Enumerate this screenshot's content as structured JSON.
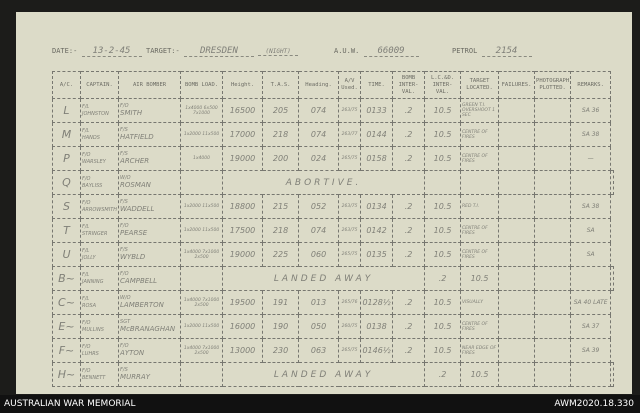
{
  "header": {
    "date_label": "DATE:-",
    "date": "13-2-45",
    "target_label": "TARGET:-",
    "target": "DRESDEN",
    "target_note": "(NIGHT)",
    "auw_label": "A.U.W.",
    "auw": "66009",
    "petrol_label": "PETROL",
    "petrol": "2154"
  },
  "columns": [
    "A/C.",
    "CAPTAIN.",
    "AIR BOMBER",
    "BOMB LOAD.",
    "Height.",
    "T.A.S.",
    "Heading.",
    "A/V Used.",
    "TIME.",
    "BOMB INTER-VAL.",
    "L.C.&D. INTER-VAL.",
    "TARGET LOCATED.",
    "FAILURES.",
    "PHOTOGRAPH PLOTTED.",
    "REMARKS."
  ],
  "rows": [
    {
      "ac": "L",
      "captain_rank": "F/L",
      "captain": "JOHNSTON",
      "bomber_rank": "F/O",
      "bomber": "SMITH",
      "load": "1x4000 6x500 7x1000",
      "height": "16500",
      "tas": "205",
      "heading": "074",
      "av": "263/75",
      "time": "0133",
      "bomb_int": ".2",
      "lcd_int": "10.5",
      "located": "GREEN T.I. OVERSHOOT 1 SEC",
      "remarks": "SA 36"
    },
    {
      "ac": "M",
      "captain_rank": "F/L",
      "captain": "HANDS",
      "bomber_rank": "F/S",
      "bomber": "HATFIELD",
      "load": "1x2000 11x500",
      "height": "17000",
      "tas": "218",
      "heading": "074",
      "av": "263/77",
      "time": "0144",
      "bomb_int": ".2",
      "lcd_int": "10.5",
      "located": "CENTRE OF FIRES",
      "remarks": "SA 38"
    },
    {
      "ac": "P",
      "captain_rank": "F/O",
      "captain": "WARSLEY",
      "bomber_rank": "F/S",
      "bomber": "ARCHER",
      "load": "1x4000",
      "height": "19000",
      "tas": "200",
      "heading": "024",
      "av": "265/75",
      "time": "0158",
      "bomb_int": ".2",
      "lcd_int": "10.5",
      "located": "CENTRE OF FIRES",
      "remarks": "—"
    },
    {
      "ac": "Q",
      "captain_rank": "F/O",
      "captain": "BAYLISS",
      "bomber_rank": "W/O",
      "bomber": "ROSMAN",
      "status": "ABORTIVE."
    },
    {
      "ac": "S",
      "captain_rank": "F/O",
      "captain": "ARROWSMITH",
      "bomber_rank": "F/S",
      "bomber": "WADDELL",
      "load": "1x2000 11x500",
      "height": "18800",
      "tas": "215",
      "heading": "052",
      "av": "263/75",
      "time": "0134",
      "bomb_int": ".2",
      "lcd_int": "10.5",
      "located": "RED T.I.",
      "remarks": "SA 38"
    },
    {
      "ac": "T",
      "captain_rank": "F/L",
      "captain": "STRINGER",
      "bomber_rank": "F/O",
      "bomber": "PEARSE",
      "load": "1x2000 11x500",
      "height": "17500",
      "tas": "218",
      "heading": "074",
      "av": "263/75",
      "time": "0142",
      "bomb_int": ".2",
      "lcd_int": "10.5",
      "located": "CENTRE OF FIRES",
      "remarks": "SA"
    },
    {
      "ac": "U",
      "captain_rank": "F/L",
      "captain": "JOLLY",
      "bomber_rank": "F/S",
      "bomber": "WYBLD",
      "load": "1x4000 7x1000 2x500",
      "height": "19000",
      "tas": "225",
      "heading": "060",
      "av": "265/75",
      "time": "0135",
      "bomb_int": ".2",
      "lcd_int": "10.5",
      "located": "CENTRE OF FIRES",
      "remarks": "SA"
    },
    {
      "ac": "B~",
      "captain_rank": "F/L",
      "captain": "JANNING",
      "bomber_rank": "F/O",
      "bomber": "CAMPBELL",
      "status": "LANDED AWAY",
      "bomb_int": ".2",
      "lcd_int": "10.5"
    },
    {
      "ac": "C~",
      "captain_rank": "F/L",
      "captain": "ROSA",
      "bomber_rank": "W/O",
      "bomber": "LAMBERTON",
      "load": "1x4000 7x1000 2x500",
      "height": "19500",
      "tas": "191",
      "heading": "013",
      "av": "265/76",
      "time": "0128½",
      "bomb_int": ".2",
      "lcd_int": "10.5",
      "located": "VISUALLY",
      "remarks": "SA 40 LATE"
    },
    {
      "ac": "E~",
      "captain_rank": "F/O",
      "captain": "MULLINS",
      "bomber_rank": "SGT",
      "bomber": "McBRANAGHAN",
      "load": "1x2000 11x500",
      "height": "16000",
      "tas": "190",
      "heading": "050",
      "av": "260/75",
      "time": "0138",
      "bomb_int": ".2",
      "lcd_int": "10.5",
      "located": "CENTRE OF FIRES",
      "remarks": "SA 37"
    },
    {
      "ac": "F~",
      "captain_rank": "F/O",
      "captain": "LUHRS",
      "bomber_rank": "F/O",
      "bomber": "AYTON",
      "load": "1x4000 7x1000 2x500",
      "height": "13000",
      "tas": "230",
      "heading": "063",
      "av": "265/75",
      "time": "0146½",
      "bomb_int": ".2",
      "lcd_int": "10.5",
      "located": "NEAR EDGE OF FIRES",
      "remarks": "SA 39"
    },
    {
      "ac": "H~",
      "captain_rank": "F/O",
      "captain": "BENNETT",
      "bomber_rank": "F/S",
      "bomber": "MURRAY",
      "status": "LANDED AWAY",
      "bomb_int": ".2",
      "lcd_int": "10.5"
    }
  ],
  "footer": {
    "left": "AUSTRALIAN WAR MEMORIAL",
    "right": "AWM2020.18.330"
  }
}
